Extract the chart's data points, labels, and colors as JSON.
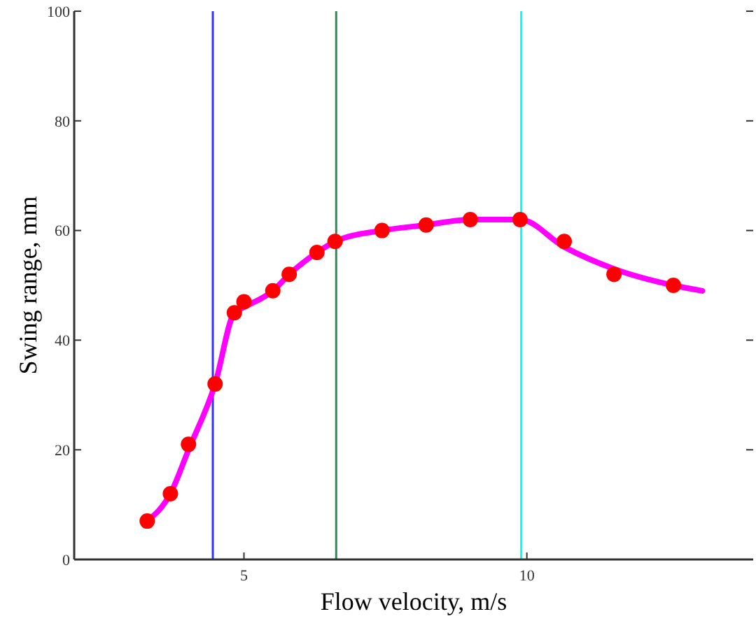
{
  "chart_data": {
    "type": "scatter",
    "xlabel": "Flow velocity, m/s",
    "ylabel": "Swing range, mm",
    "xlim": [
      2,
      14
    ],
    "ylim": [
      0,
      100
    ],
    "xticks": [
      5,
      10
    ],
    "yticks": [
      0,
      20,
      40,
      60,
      80,
      100
    ],
    "grid": false,
    "series": [
      {
        "type": "line",
        "color": "#ff00ff",
        "marker": "none",
        "line_style": "solid",
        "x": [
          3.29,
          3.7,
          4.02,
          4.49,
          4.83,
          5.0,
          5.51,
          5.8,
          6.29,
          6.61,
          7.44,
          8.22,
          9.0,
          9.88,
          10.66,
          11.54,
          12.59,
          13.1
        ],
        "values": [
          7,
          12,
          20,
          32,
          45,
          46,
          49,
          52,
          56,
          58,
          60,
          61,
          62,
          62,
          57,
          53,
          50,
          49
        ]
      },
      {
        "color": "#ff0000",
        "marker": "circle",
        "x": [
          3.29,
          3.7,
          4.02,
          4.49,
          4.83,
          5.0,
          5.51,
          5.8,
          6.29,
          6.61,
          7.44,
          8.22,
          9.0,
          9.88,
          10.66,
          11.54,
          12.59
        ],
        "values": [
          7,
          12,
          21,
          32,
          45,
          47,
          49,
          52,
          56,
          58,
          60,
          61,
          62,
          62,
          58,
          52,
          50
        ]
      }
    ],
    "ref_lines": [
      {
        "axis": "x",
        "value": 4.45,
        "color": "#3333ff"
      },
      {
        "axis": "x",
        "value": 6.63,
        "color": "#2e8b57"
      },
      {
        "axis": "x",
        "value": 9.9,
        "color": "#00ffff"
      }
    ]
  }
}
